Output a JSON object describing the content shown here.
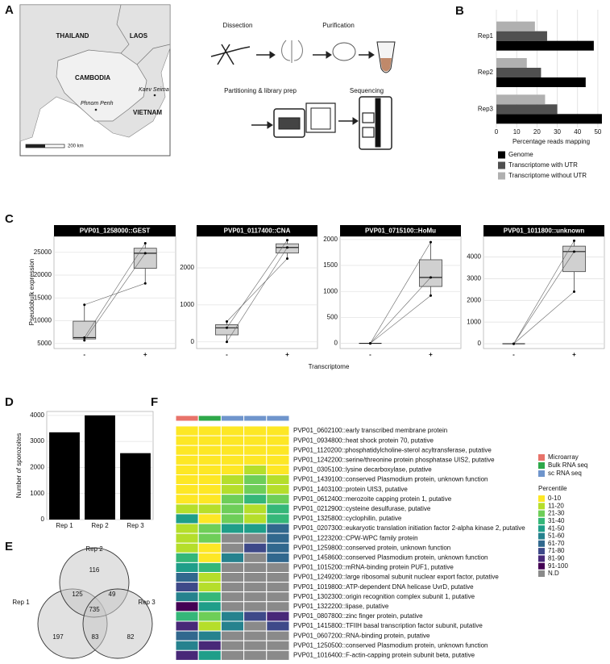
{
  "panel_labels": [
    "A",
    "B",
    "C",
    "D",
    "E",
    "F"
  ],
  "map": {
    "countries": [
      "THAILAND",
      "LAOS",
      "CAMBODIA",
      "VIETNAM"
    ],
    "places": [
      "Kaev Seima",
      "Phnom Penh"
    ],
    "scale_label": "200 km"
  },
  "workflow": {
    "steps": [
      "Dissection",
      "Purification",
      "Partitioning & library prep",
      "Sequencing"
    ]
  },
  "chart_data": [
    {
      "type": "hbar",
      "categories": [
        "Rep1",
        "Rep2",
        "Rep3"
      ],
      "series": [
        {
          "name": "Genome",
          "color": "#000000",
          "values": [
            48,
            44,
            52
          ]
        },
        {
          "name": "Transcriptome with UTR",
          "color": "#505050",
          "values": [
            25,
            22,
            30
          ]
        },
        {
          "name": "Transcriptome without UTR",
          "color": "#b0b0b0",
          "values": [
            19,
            15,
            24
          ]
        }
      ],
      "xlabel": "Percentage reads mapping",
      "xlim": [
        0,
        54
      ],
      "xticks": [
        0,
        10,
        20,
        30,
        40,
        50
      ],
      "grid": true
    },
    {
      "type": "box",
      "title": "PVP01_1258000::GEST",
      "ylabel": "Pseudobulk expression",
      "xlabel": "Transcriptome",
      "categories": [
        "-",
        "+"
      ],
      "boxes": [
        {
          "low": 5700,
          "q1": 6000,
          "median": 6300,
          "q3": 9900,
          "high": 13500
        },
        {
          "low": 18200,
          "q1": 21500,
          "median": 24800,
          "q3": 25900,
          "high": 27000
        }
      ],
      "pairs": [
        [
          13500,
          18200
        ],
        [
          6300,
          27000
        ],
        [
          5700,
          24800
        ]
      ],
      "ylim": [
        3900,
        28500
      ],
      "yticks": [
        5000,
        10000,
        15000,
        20000,
        25000
      ],
      "grid": true
    },
    {
      "type": "box",
      "title": "PVP01_0117400::CNA",
      "categories": [
        "-",
        "+"
      ],
      "boxes": [
        {
          "low": 0,
          "q1": 190,
          "median": 380,
          "q3": 465,
          "high": 550
        },
        {
          "low": 2250,
          "q1": 2400,
          "median": 2550,
          "q3": 2650,
          "high": 2750
        }
      ],
      "pairs": [
        [
          550,
          2250
        ],
        [
          380,
          2750
        ],
        [
          0,
          2550
        ]
      ],
      "ylim": [
        -180,
        2850
      ],
      "yticks": [
        0,
        1000,
        2000
      ],
      "grid": true
    },
    {
      "type": "box",
      "title": "PVP01_0715100::HoMu",
      "categories": [
        "-",
        "+"
      ],
      "boxes": [
        {
          "low": 0,
          "q1": 0,
          "median": 0,
          "q3": 0,
          "high": 0
        },
        {
          "low": 920,
          "q1": 1095,
          "median": 1270,
          "q3": 1610,
          "high": 1950
        }
      ],
      "pairs": [
        [
          0,
          920
        ],
        [
          0,
          1270
        ],
        [
          0,
          1950
        ]
      ],
      "ylim": [
        -100,
        2060
      ],
      "yticks": [
        0,
        500,
        1000,
        1500,
        2000
      ],
      "grid": true
    },
    {
      "type": "box",
      "title": "PVP01_1011800::unknown",
      "categories": [
        "-",
        "+"
      ],
      "boxes": [
        {
          "low": 0,
          "q1": 0,
          "median": 0,
          "q3": 0,
          "high": 0
        },
        {
          "low": 2400,
          "q1": 3325,
          "median": 4250,
          "q3": 4500,
          "high": 4750
        }
      ],
      "pairs": [
        [
          0,
          2400
        ],
        [
          0,
          4250
        ],
        [
          0,
          4750
        ]
      ],
      "ylim": [
        -220,
        4950
      ],
      "yticks": [
        0,
        1000,
        2000,
        3000,
        4000
      ],
      "grid": true
    },
    {
      "type": "bar",
      "categories": [
        "Rep 1",
        "Rep 2",
        "Rep 3"
      ],
      "values": [
        3350,
        4000,
        2550
      ],
      "color": "#000000",
      "ylabel": "Number of sporozoites",
      "ylim": [
        0,
        4150
      ],
      "yticks": [
        0,
        1000,
        2000,
        3000,
        4000
      ],
      "grid": true
    },
    {
      "type": "venn",
      "sets": [
        "Rep 1",
        "Rep 2",
        "Rep 3"
      ],
      "values": [
        197,
        116,
        82,
        125,
        83,
        49,
        735
      ]
    },
    {
      "type": "heatmap",
      "data_types": [
        {
          "name": "Microarray",
          "color": "#e8736a"
        },
        {
          "name": "Bulk RNA seq",
          "color": "#2ea84a"
        },
        {
          "name": "sc RNA seq",
          "color": "#6f95cc"
        }
      ],
      "column_sources": [
        "Microarray",
        "Bulk RNA seq",
        "sc RNA seq",
        "sc RNA seq",
        "sc RNA seq"
      ],
      "legend_title": "Percentile",
      "bins": [
        {
          "label": "0-10",
          "color": "#fde725"
        },
        {
          "label": "11-20",
          "color": "#b5de2b"
        },
        {
          "label": "21-30",
          "color": "#6ece58"
        },
        {
          "label": "31-40",
          "color": "#35b779"
        },
        {
          "label": "41-50",
          "color": "#1f9e89"
        },
        {
          "label": "51-60",
          "color": "#26828e"
        },
        {
          "label": "61-70",
          "color": "#31688e"
        },
        {
          "label": "71-80",
          "color": "#3e4989"
        },
        {
          "label": "81-90",
          "color": "#482878"
        },
        {
          "label": "91-100",
          "color": "#440154"
        },
        {
          "label": "N.D",
          "color": "#8a8a8a"
        }
      ],
      "rows": [
        "PVP01_0602100::early transcribed membrane protein",
        "PVP01_0934800::heat shock protein 70, putative",
        "PVP01_1120200::phosphatidylcholine-sterol acyltransferase, putative",
        "PVP01_1242200::serine/threonine protein phosphatase UIS2, putative",
        "PVP01_0305100::lysine decarboxylase, putative",
        "PVP01_1439100::conserved Plasmodium protein, unknown function",
        "PVP01_1403100::protein UIS3, putative",
        "PVP01_0612400::merozoite capping protein 1, putative",
        "PVP01_0212900::cysteine desulfurase, putative",
        "PVP01_1325800::cyclophilin, putative",
        "PVP01_0207300::eukaryotic translation initiation factor 2-alpha kinase 2, putative",
        "PVP01_1223200::CPW-WPC family protein",
        "PVP01_1259800::conserved protein, unknown function",
        "PVP01_1458600::conserved Plasmodium protein, unknown function",
        "PVP01_1015200::mRNA-binding protein PUF1, putative",
        "PVP01_1249200::large ribosomal subunit nuclear export factor, putative",
        "PVP01_1019800::ATP-dependent DNA helicase UvrD, putative",
        "PVP01_1302300::origin recognition complex subunit 1, putative",
        "PVP01_1322200::lipase, putative",
        "PVP01_0807800::zinc finger protein, putative",
        "PVP01_1415800::TFIIH basal transcription factor subunit, putative",
        "PVP01_0607200::RNA-binding protein, putative",
        "PVP01_1250500::conserved Plasmodium protein, unknown function",
        "PVP01_1016400::F-actin-capping protein subunit beta, putative"
      ],
      "cells": [
        [
          "0-10",
          "0-10",
          "0-10",
          "0-10",
          "0-10"
        ],
        [
          "0-10",
          "0-10",
          "0-10",
          "0-10",
          "0-10"
        ],
        [
          "0-10",
          "0-10",
          "0-10",
          "0-10",
          "0-10"
        ],
        [
          "0-10",
          "0-10",
          "0-10",
          "0-10",
          "0-10"
        ],
        [
          "0-10",
          "0-10",
          "0-10",
          "11-20",
          "0-10"
        ],
        [
          "0-10",
          "0-10",
          "11-20",
          "21-30",
          "11-20"
        ],
        [
          "0-10",
          "0-10",
          "11-20",
          "21-30",
          "11-20"
        ],
        [
          "0-10",
          "0-10",
          "21-30",
          "31-40",
          "21-30"
        ],
        [
          "11-20",
          "11-20",
          "21-30",
          "11-20",
          "31-40"
        ],
        [
          "41-50",
          "0-10",
          "21-30",
          "11-20",
          "31-40"
        ],
        [
          "11-20",
          "21-30",
          "41-50",
          "41-50",
          "61-70"
        ],
        [
          "11-20",
          "21-30",
          "N.D",
          "N.D",
          "61-70"
        ],
        [
          "11-20",
          "0-10",
          "N.D",
          "71-80",
          "61-70"
        ],
        [
          "31-40",
          "0-10",
          "51-60",
          "N.D",
          "61-70"
        ],
        [
          "41-50",
          "31-40",
          "N.D",
          "N.D",
          "N.D"
        ],
        [
          "61-70",
          "11-20",
          "N.D",
          "N.D",
          "N.D"
        ],
        [
          "71-80",
          "11-20",
          "N.D",
          "N.D",
          "N.D"
        ],
        [
          "51-60",
          "31-40",
          "N.D",
          "N.D",
          "N.D"
        ],
        [
          "91-100",
          "41-50",
          "N.D",
          "N.D",
          "N.D"
        ],
        [
          "31-40",
          "21-30",
          "51-60",
          "71-80",
          "81-90"
        ],
        [
          "81-90",
          "11-20",
          "51-60",
          "N.D",
          "71-80"
        ],
        [
          "61-70",
          "51-60",
          "N.D",
          "N.D",
          "N.D"
        ],
        [
          "51-60",
          "81-90",
          "N.D",
          "N.D",
          "N.D"
        ],
        [
          "81-90",
          "41-50",
          "N.D",
          "N.D",
          "N.D"
        ]
      ]
    }
  ]
}
